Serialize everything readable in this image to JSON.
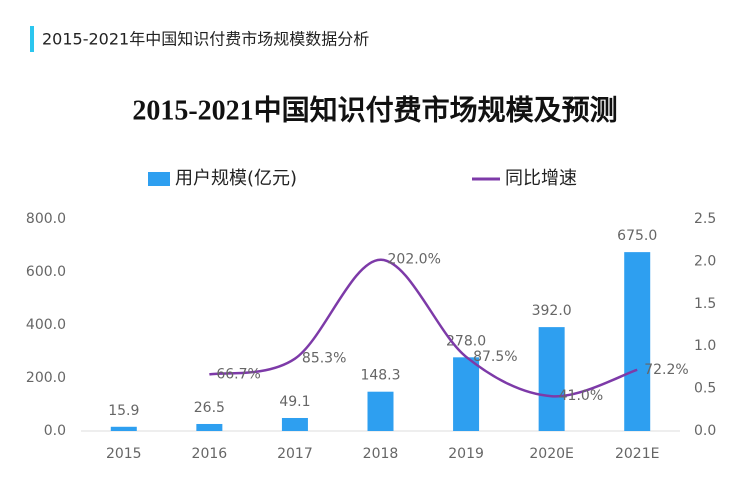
{
  "header": {
    "title": "2015-2021年中国知识付费市场规模数据分析"
  },
  "chart_data": {
    "type": "bar-line",
    "title": "2015-2021中国知识付费市场规模及预测",
    "categories": [
      "2015",
      "2016",
      "2017",
      "2018",
      "2019",
      "2020E",
      "2021E"
    ],
    "series": [
      {
        "name": "用户规模(亿元)",
        "type": "bar",
        "color": "#2e9ff0",
        "values": [
          15.9,
          26.5,
          49.1,
          148.3,
          278.0,
          392.0,
          675.0
        ],
        "value_labels": [
          "15.9",
          "26.5",
          "49.1",
          "148.3",
          "278.0",
          "392.0",
          "675.0"
        ]
      },
      {
        "name": "同比增速",
        "type": "line",
        "axis": "y2",
        "color": "#7d3aa8",
        "values": [
          null,
          0.667,
          0.853,
          2.02,
          0.875,
          0.41,
          0.722
        ],
        "value_labels": [
          null,
          "66.7%",
          "85.3%",
          "202.0%",
          "87.5%",
          "41.0%",
          "72.2%"
        ]
      }
    ],
    "ylim": [
      0,
      800
    ],
    "yticks": [
      {
        "value": 0,
        "label": "0.0"
      },
      {
        "value": 200,
        "label": "200.0"
      },
      {
        "value": 400,
        "label": "400.0"
      },
      {
        "value": 600,
        "label": "600.0"
      },
      {
        "value": 800,
        "label": "800.0"
      }
    ],
    "y2lim": [
      0,
      2.5
    ],
    "y2ticks": [
      {
        "value": 0,
        "label": "0.0"
      },
      0.5,
      {
        "value": 1,
        "label": "1.0"
      },
      1.5,
      {
        "value": 2,
        "label": "2.0"
      },
      2.5
    ],
    "grid": false,
    "legend": "top"
  }
}
